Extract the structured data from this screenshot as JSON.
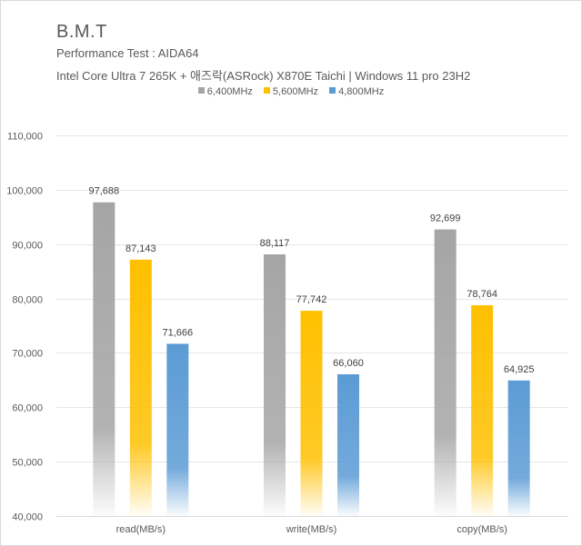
{
  "header": {
    "title": "B.M.T",
    "subtitle": "Performance Test : AIDA64",
    "system": "Intel Core Ultra 7 265K + 애즈락(ASRock) X870E Taichi | Windows 11 pro 23H2"
  },
  "chart_data": {
    "type": "bar",
    "title": "B.M.T",
    "subtitle": "Performance Test : AIDA64",
    "xlabel": "",
    "ylabel": "",
    "categories": [
      "read(MB/s)",
      "write(MB/s)",
      "copy(MB/s)"
    ],
    "series": [
      {
        "name": "6,400MHz",
        "color": "#a5a5a5",
        "values": [
          97688,
          88117,
          92699
        ]
      },
      {
        "name": "5,600MHz",
        "color": "#ffc000",
        "values": [
          87143,
          77742,
          78764
        ]
      },
      {
        "name": "4,800MHz",
        "color": "#5b9bd5",
        "values": [
          71666,
          66060,
          64925
        ]
      }
    ],
    "data_labels": [
      [
        "97,688",
        "88,117",
        "92,699"
      ],
      [
        "87,143",
        "77,742",
        "78,764"
      ],
      [
        "71,666",
        "66,060",
        "64,925"
      ]
    ],
    "ylim": [
      40000,
      110000
    ],
    "yticks": [
      40000,
      50000,
      60000,
      70000,
      80000,
      90000,
      100000,
      110000
    ],
    "ytick_labels": [
      "40,000",
      "50,000",
      "60,000",
      "70,000",
      "80,000",
      "90,000",
      "100,000",
      "110,000"
    ],
    "grid": true,
    "legend_position": "top-center"
  }
}
